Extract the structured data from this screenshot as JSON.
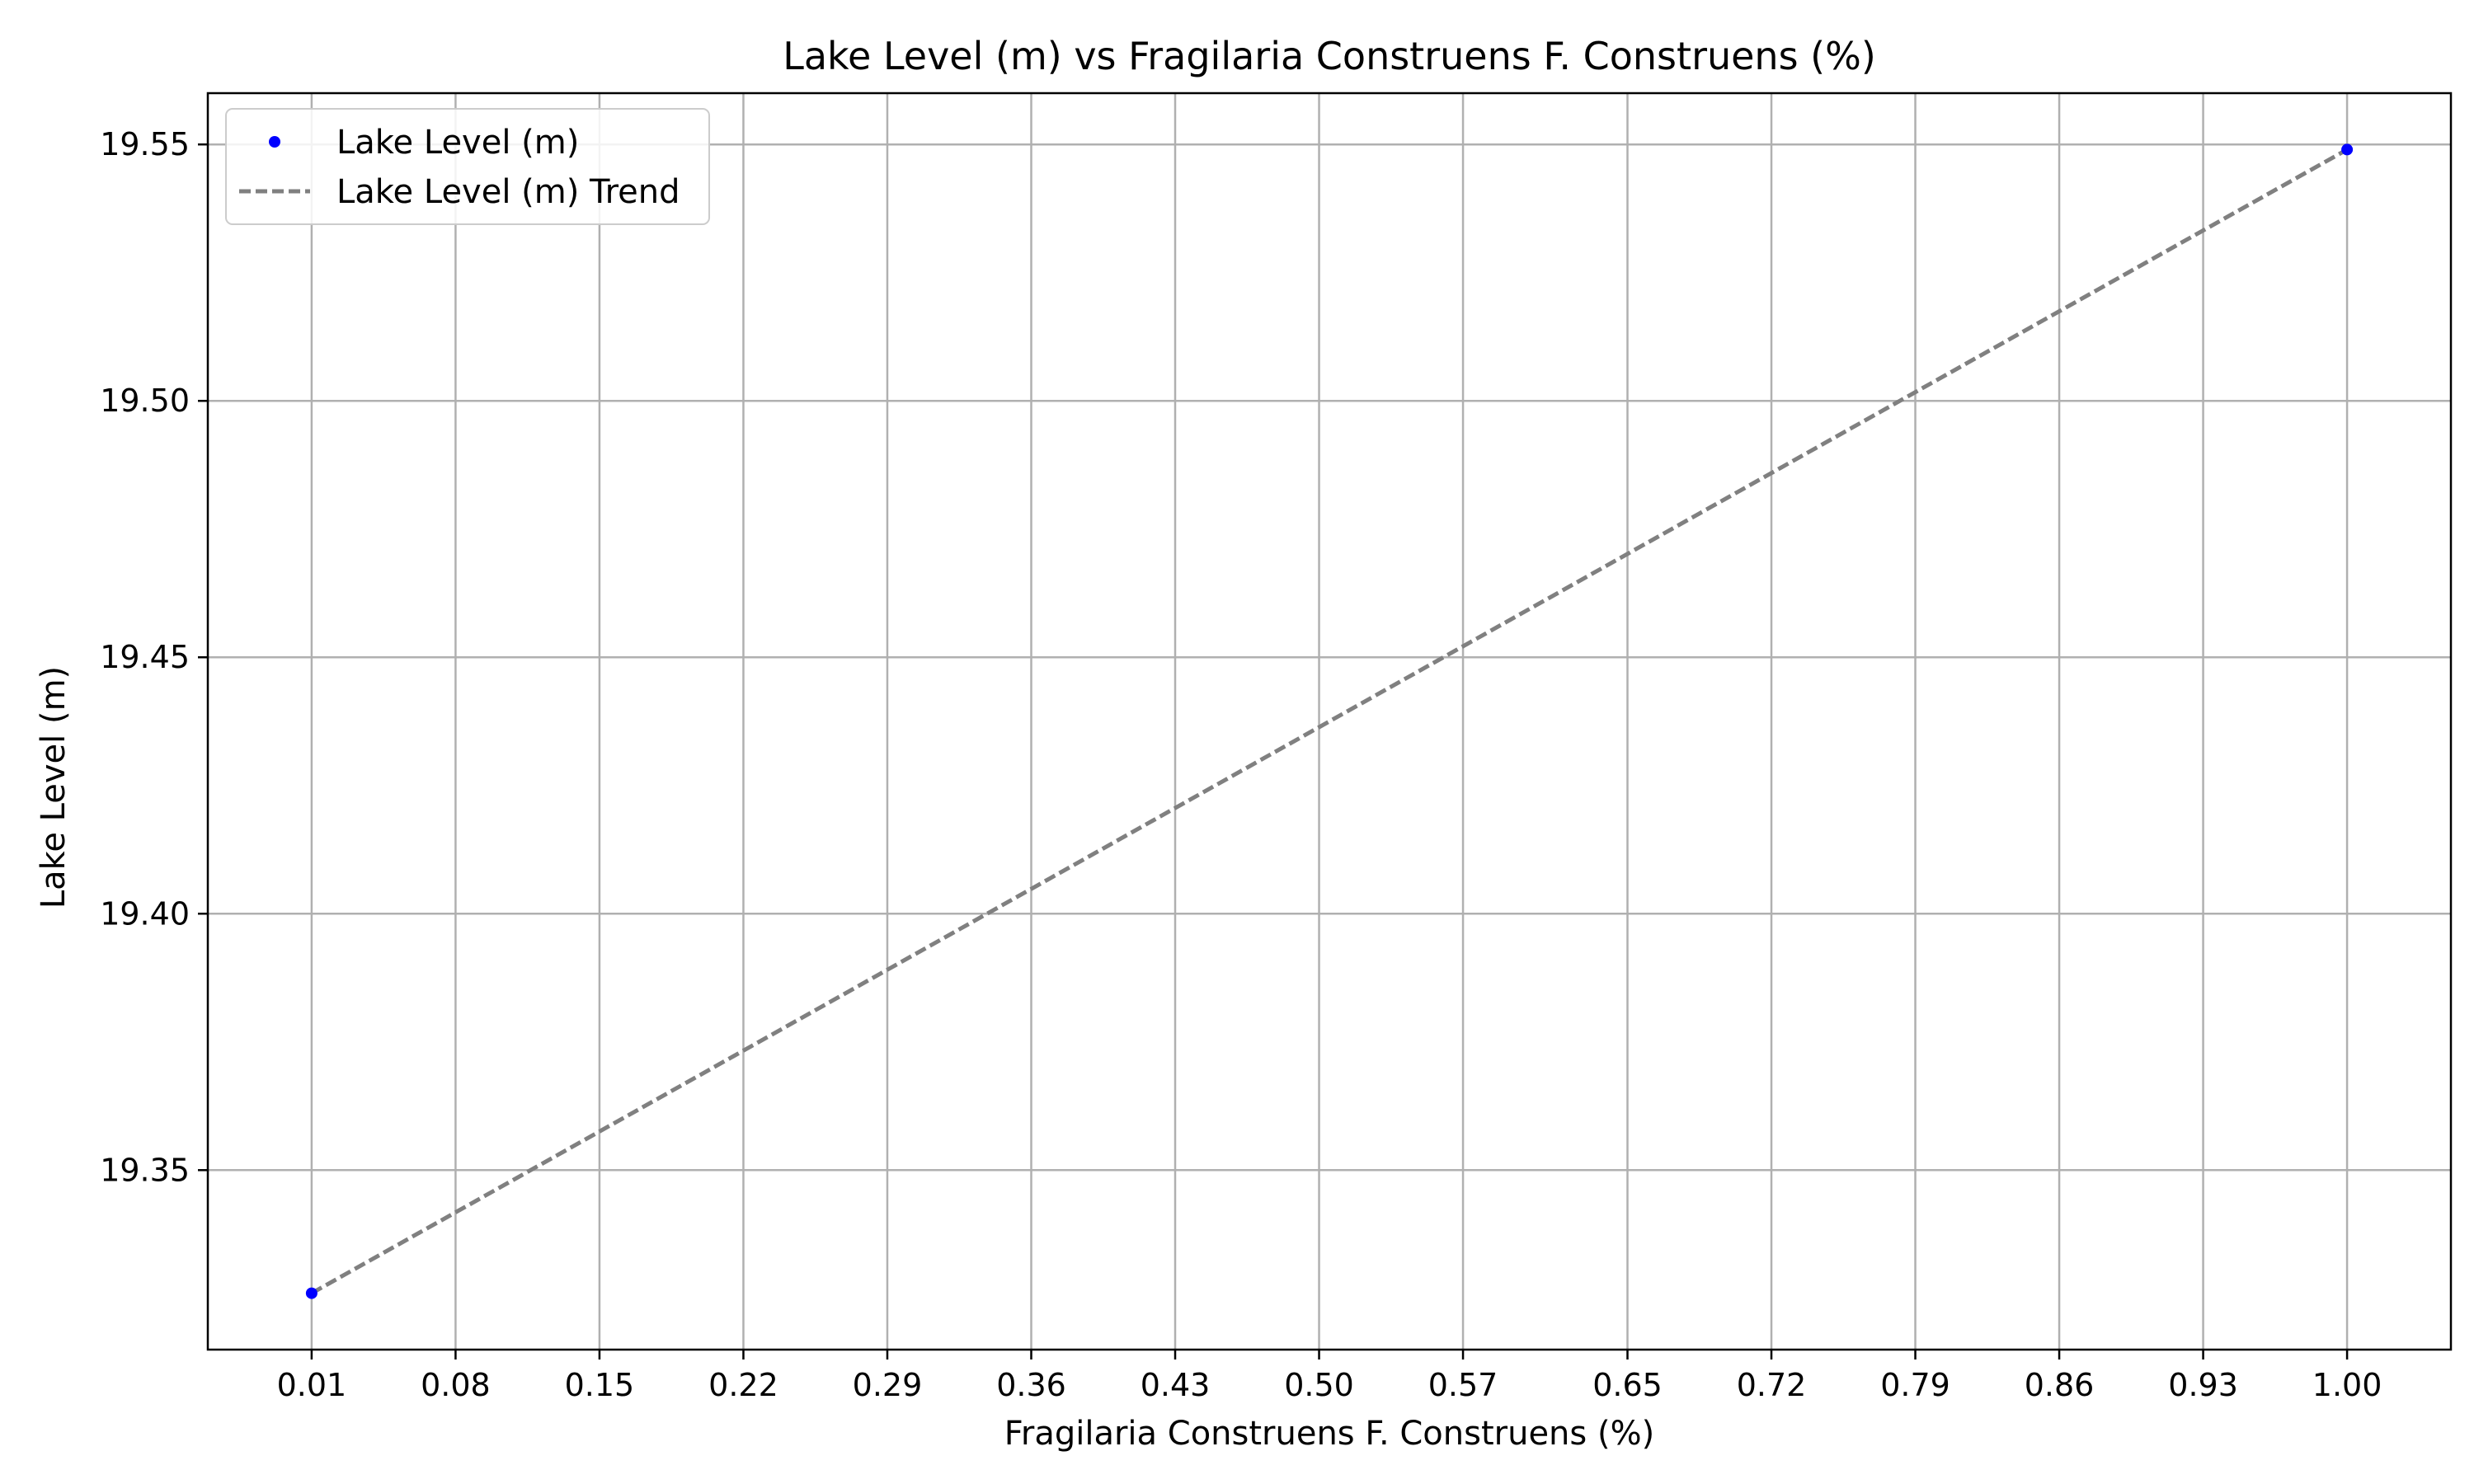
{
  "chart_data": {
    "type": "scatter",
    "title": "Lake Level (m) vs Fragilaria Construens F. Construens (%)",
    "xlabel": "Fragilaria Construens F. Construens (%)",
    "ylabel": "Lake Level (m)",
    "xlim": [
      -0.0405,
      1.0505
    ],
    "ylim": [
      19.315,
      19.56
    ],
    "x_ticks": [
      0.01,
      0.08,
      0.15,
      0.22,
      0.29,
      0.36,
      0.43,
      0.5,
      0.57,
      0.65,
      0.72,
      0.79,
      0.86,
      0.93,
      1.0
    ],
    "x_tick_labels": [
      "0.01",
      "0.08",
      "0.15",
      "0.22",
      "0.29",
      "0.36",
      "0.43",
      "0.50",
      "0.57",
      "0.65",
      "0.72",
      "0.79",
      "0.86",
      "0.93",
      "1.00"
    ],
    "y_ticks": [
      19.35,
      19.4,
      19.45,
      19.5,
      19.55
    ],
    "y_tick_labels": [
      "19.35",
      "19.40",
      "19.45",
      "19.50",
      "19.55"
    ],
    "grid": true,
    "legend_position": "top-left",
    "series": [
      {
        "name": "Lake Level (m)",
        "kind": "scatter",
        "color": "#0000ff",
        "x": [
          0.01,
          1.0
        ],
        "y": [
          19.326,
          19.549
        ]
      },
      {
        "name": "Lake Level (m) Trend",
        "kind": "line",
        "style": "dashed",
        "color": "#808080",
        "x": [
          0.01,
          1.0
        ],
        "y": [
          19.326,
          19.549
        ]
      }
    ]
  }
}
